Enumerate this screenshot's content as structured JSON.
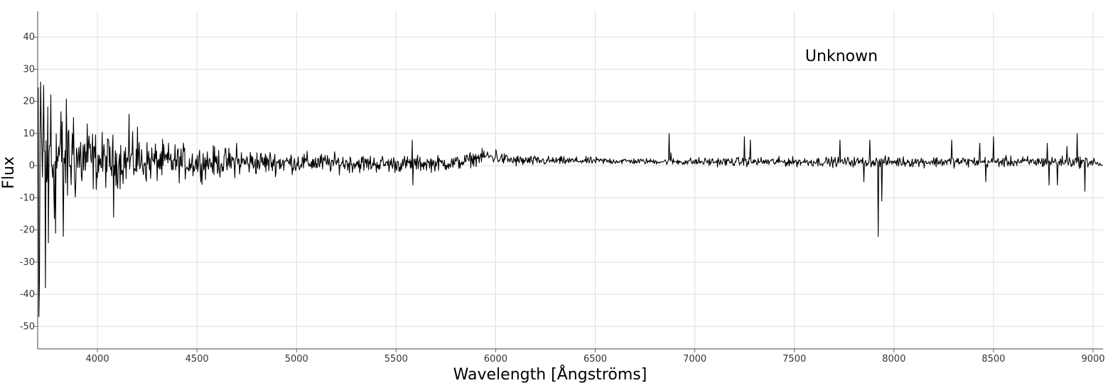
{
  "chart_data": {
    "type": "line",
    "title": "",
    "annotation": "Unknown",
    "xlabel": "Wavelength [Ångströms]",
    "ylabel": "Flux",
    "xlim": [
      3700,
      9050
    ],
    "ylim": [
      -57,
      48
    ],
    "xticks": [
      4000,
      4500,
      5000,
      5500,
      6000,
      6500,
      7000,
      7500,
      8000,
      8500,
      9000
    ],
    "yticks": [
      40,
      30,
      20,
      10,
      0,
      -10,
      -20,
      -30,
      -40,
      -50
    ],
    "grid": true,
    "line_color": "#000000",
    "grid_color": "#dddddd",
    "series": [
      {
        "x_start": 3700,
        "x_end": 9050,
        "x_step": 3,
        "baseline": [
          [
            3700,
            3
          ],
          [
            4000,
            1.5
          ],
          [
            4500,
            1
          ],
          [
            5000,
            1
          ],
          [
            5500,
            0.5
          ],
          [
            5800,
            0.8
          ],
          [
            5950,
            3
          ],
          [
            6100,
            1.5
          ],
          [
            6500,
            1.5
          ],
          [
            7000,
            1.2
          ],
          [
            8000,
            1.2
          ],
          [
            9000,
            1.2
          ],
          [
            9050,
            0
          ]
        ],
        "noise_amplitude": [
          [
            3700,
            18
          ],
          [
            3800,
            14
          ],
          [
            3900,
            9
          ],
          [
            4000,
            6
          ],
          [
            4250,
            4.5
          ],
          [
            4500,
            3.5
          ],
          [
            5000,
            2.2
          ],
          [
            5500,
            1.8
          ],
          [
            5800,
            1.6
          ],
          [
            6000,
            1.4
          ],
          [
            6300,
            0.9
          ],
          [
            6800,
            0.6
          ],
          [
            7000,
            0.9
          ],
          [
            8000,
            1.1
          ],
          [
            9000,
            1.2
          ],
          [
            9050,
            0
          ]
        ],
        "features": [
          [
            3705,
            -47
          ],
          [
            3710,
            -36
          ],
          [
            3715,
            26
          ],
          [
            3730,
            25
          ],
          [
            3740,
            -38
          ],
          [
            3755,
            -24
          ],
          [
            3765,
            22
          ],
          [
            3790,
            -21
          ],
          [
            3830,
            -22
          ],
          [
            3880,
            15
          ],
          [
            3950,
            13
          ],
          [
            4080,
            -16
          ],
          [
            4160,
            16
          ],
          [
            4200,
            12
          ],
          [
            4700,
            7
          ],
          [
            5580,
            8
          ],
          [
            5585,
            -6
          ],
          [
            6000,
            5
          ],
          [
            6870,
            10
          ],
          [
            6880,
            4
          ],
          [
            7250,
            9
          ],
          [
            7280,
            8
          ],
          [
            7730,
            8
          ],
          [
            7850,
            -5
          ],
          [
            7880,
            8
          ],
          [
            7920,
            -22
          ],
          [
            7940,
            -11
          ],
          [
            8290,
            8
          ],
          [
            8430,
            7
          ],
          [
            8460,
            -5
          ],
          [
            8500,
            9
          ],
          [
            8770,
            7
          ],
          [
            8780,
            -6
          ],
          [
            8820,
            -6
          ],
          [
            8870,
            6
          ],
          [
            8920,
            10
          ],
          [
            8960,
            -8
          ]
        ]
      }
    ]
  }
}
